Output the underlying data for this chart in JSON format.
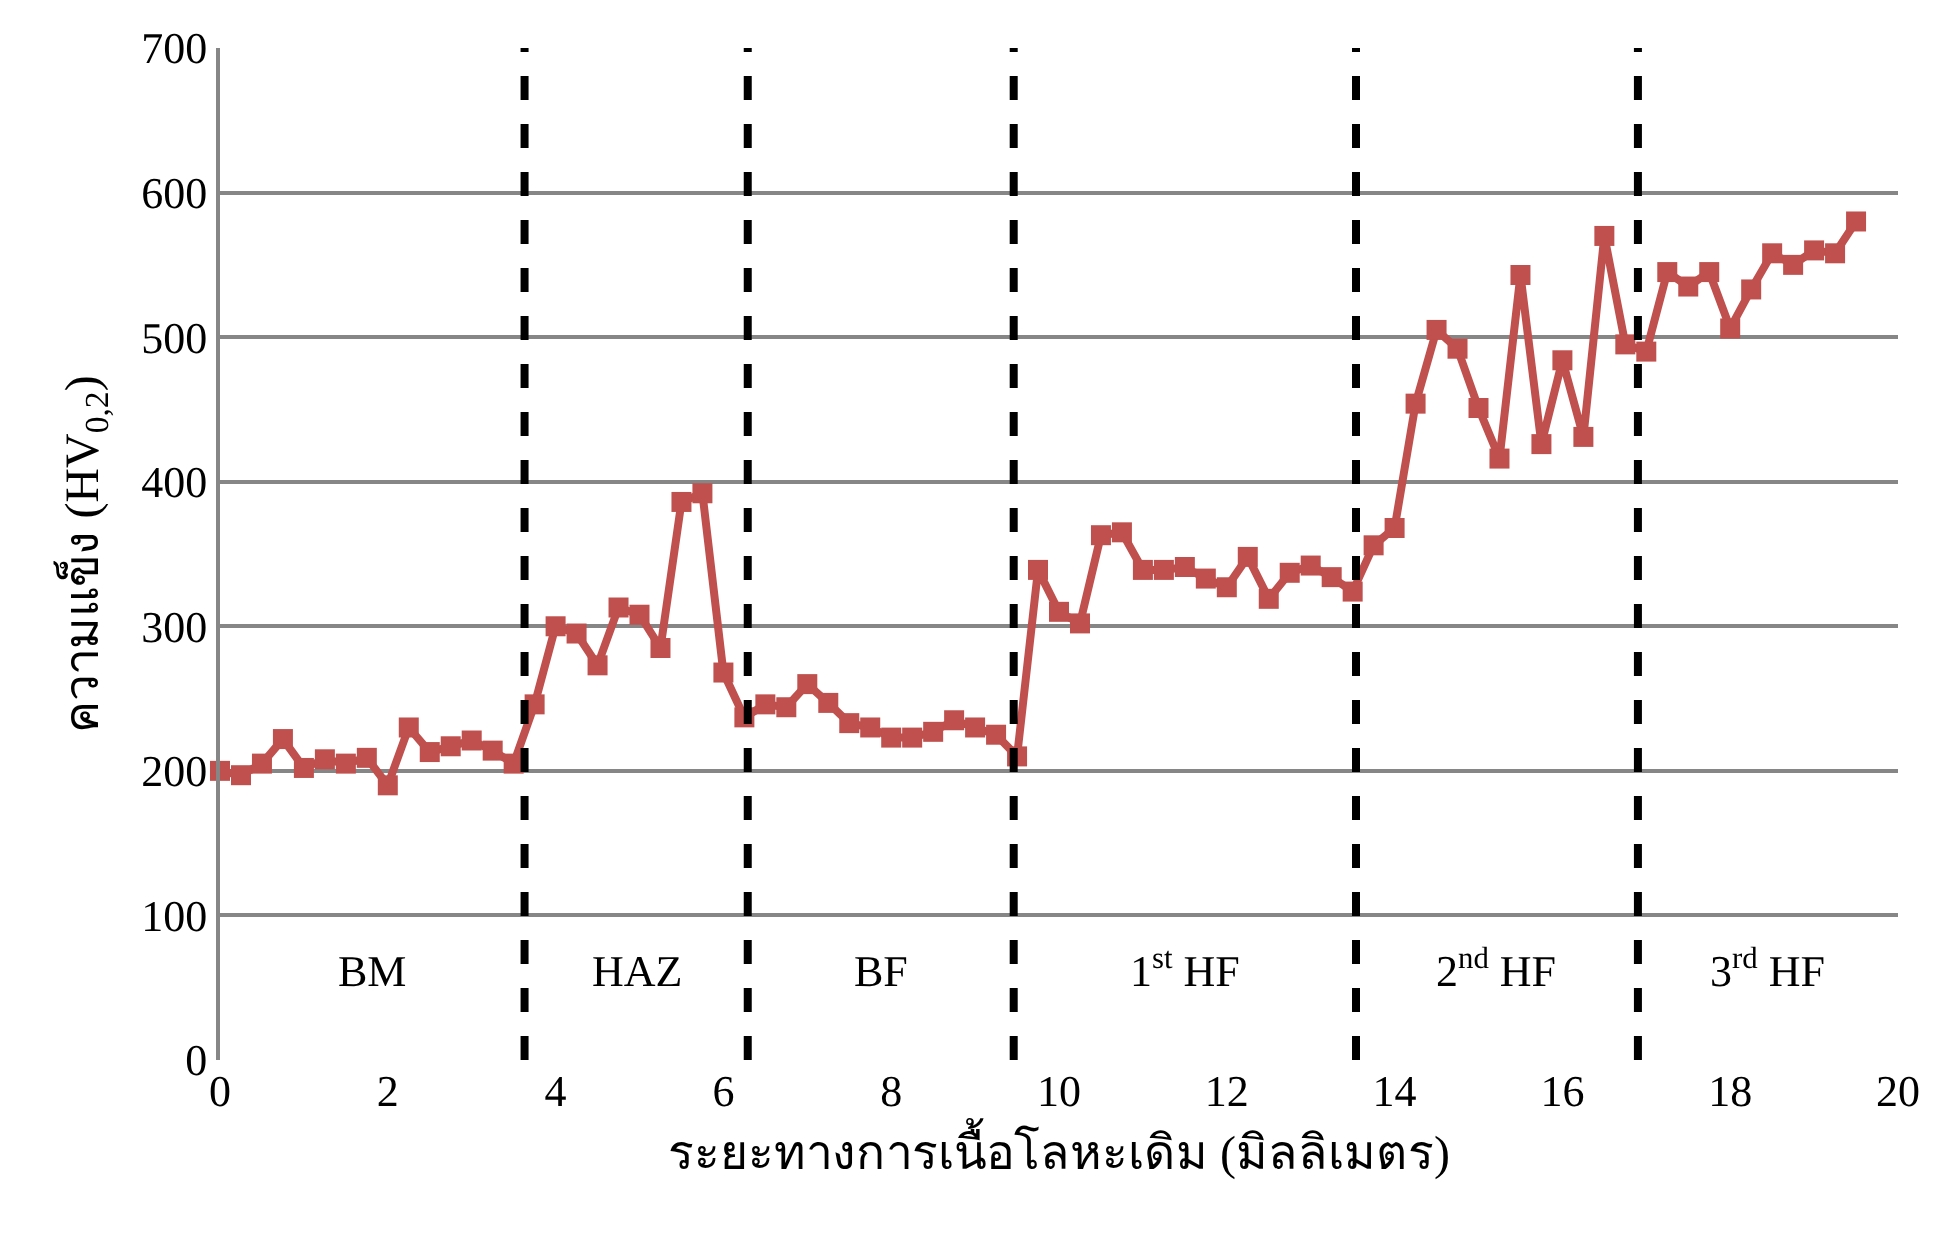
{
  "chart_data": {
    "type": "line",
    "xlabel": "ระยะทางการเนื้อโลหะเดิม (มิลลิเมตร)",
    "ylabel": "ความแข็ง (HV$_{0,2}$)",
    "x": [
      0,
      0.25,
      0.5,
      0.75,
      1,
      1.25,
      1.5,
      1.75,
      2,
      2.25,
      2.5,
      2.75,
      3,
      3.25,
      3.5,
      3.75,
      4,
      4.25,
      4.5,
      4.75,
      5,
      5.25,
      5.5,
      5.75,
      6,
      6.25,
      6.5,
      6.75,
      7,
      7.25,
      7.5,
      7.75,
      8,
      8.25,
      8.5,
      8.75,
      9,
      9.25,
      9.5,
      9.75,
      10,
      10.25,
      10.5,
      10.75,
      11,
      11.25,
      11.5,
      11.75,
      12,
      12.25,
      12.5,
      12.75,
      13,
      13.25,
      13.5,
      13.75,
      14,
      14.25,
      14.5,
      14.75,
      15,
      15.25,
      15.5,
      15.75,
      16,
      16.25,
      16.5,
      16.75,
      17,
      17.25,
      17.5,
      17.75,
      18,
      18.25,
      18.5,
      18.75,
      19,
      19.25,
      19.5
    ],
    "series": [
      {
        "color": "#c0504d",
        "values": [
          200,
          197,
          205,
          222,
          202,
          208,
          205,
          209,
          190,
          230,
          213,
          217,
          221,
          214,
          205,
          246,
          300,
          295,
          273,
          313,
          308,
          285,
          386,
          392,
          268,
          237,
          246,
          244,
          260,
          247,
          233,
          230,
          223,
          223,
          227,
          235,
          230,
          225,
          210,
          339,
          310,
          302,
          363,
          365,
          339,
          339,
          341,
          333,
          327,
          348,
          319,
          337,
          342,
          334,
          324,
          356,
          368,
          454,
          505,
          492,
          451,
          416,
          543,
          426,
          484,
          431,
          570,
          495,
          490,
          545,
          535,
          545,
          506,
          533,
          558,
          550,
          560,
          558,
          580
        ]
      }
    ],
    "xlim": [
      0,
      20
    ],
    "xticks": [
      0,
      2,
      4,
      6,
      8,
      10,
      12,
      14,
      16,
      18,
      20
    ],
    "ylim": [
      0,
      700
    ],
    "yticks": [
      0,
      100,
      200,
      300,
      400,
      500,
      600,
      700
    ],
    "grid": "y",
    "marker": "square",
    "line_style": "solid",
    "ref_lines": [
      {
        "axis": "x",
        "value": 3.63,
        "color": "#000000",
        "line_style": "dashed"
      },
      {
        "axis": "x",
        "value": 6.29,
        "color": "#000000",
        "line_style": "dashed"
      },
      {
        "axis": "x",
        "value": 9.46,
        "color": "#000000",
        "line_style": "dashed"
      },
      {
        "axis": "x",
        "value": 13.54,
        "color": "#000000",
        "line_style": "dashed"
      },
      {
        "axis": "x",
        "value": 16.9,
        "color": "#000000",
        "line_style": "dashed"
      }
    ],
    "annotations": [
      "BM",
      "HAZ",
      "BF",
      "1$^{st}$ HF",
      "2$^{nd}$ HF",
      "3$^{rd}$ HF"
    ]
  }
}
